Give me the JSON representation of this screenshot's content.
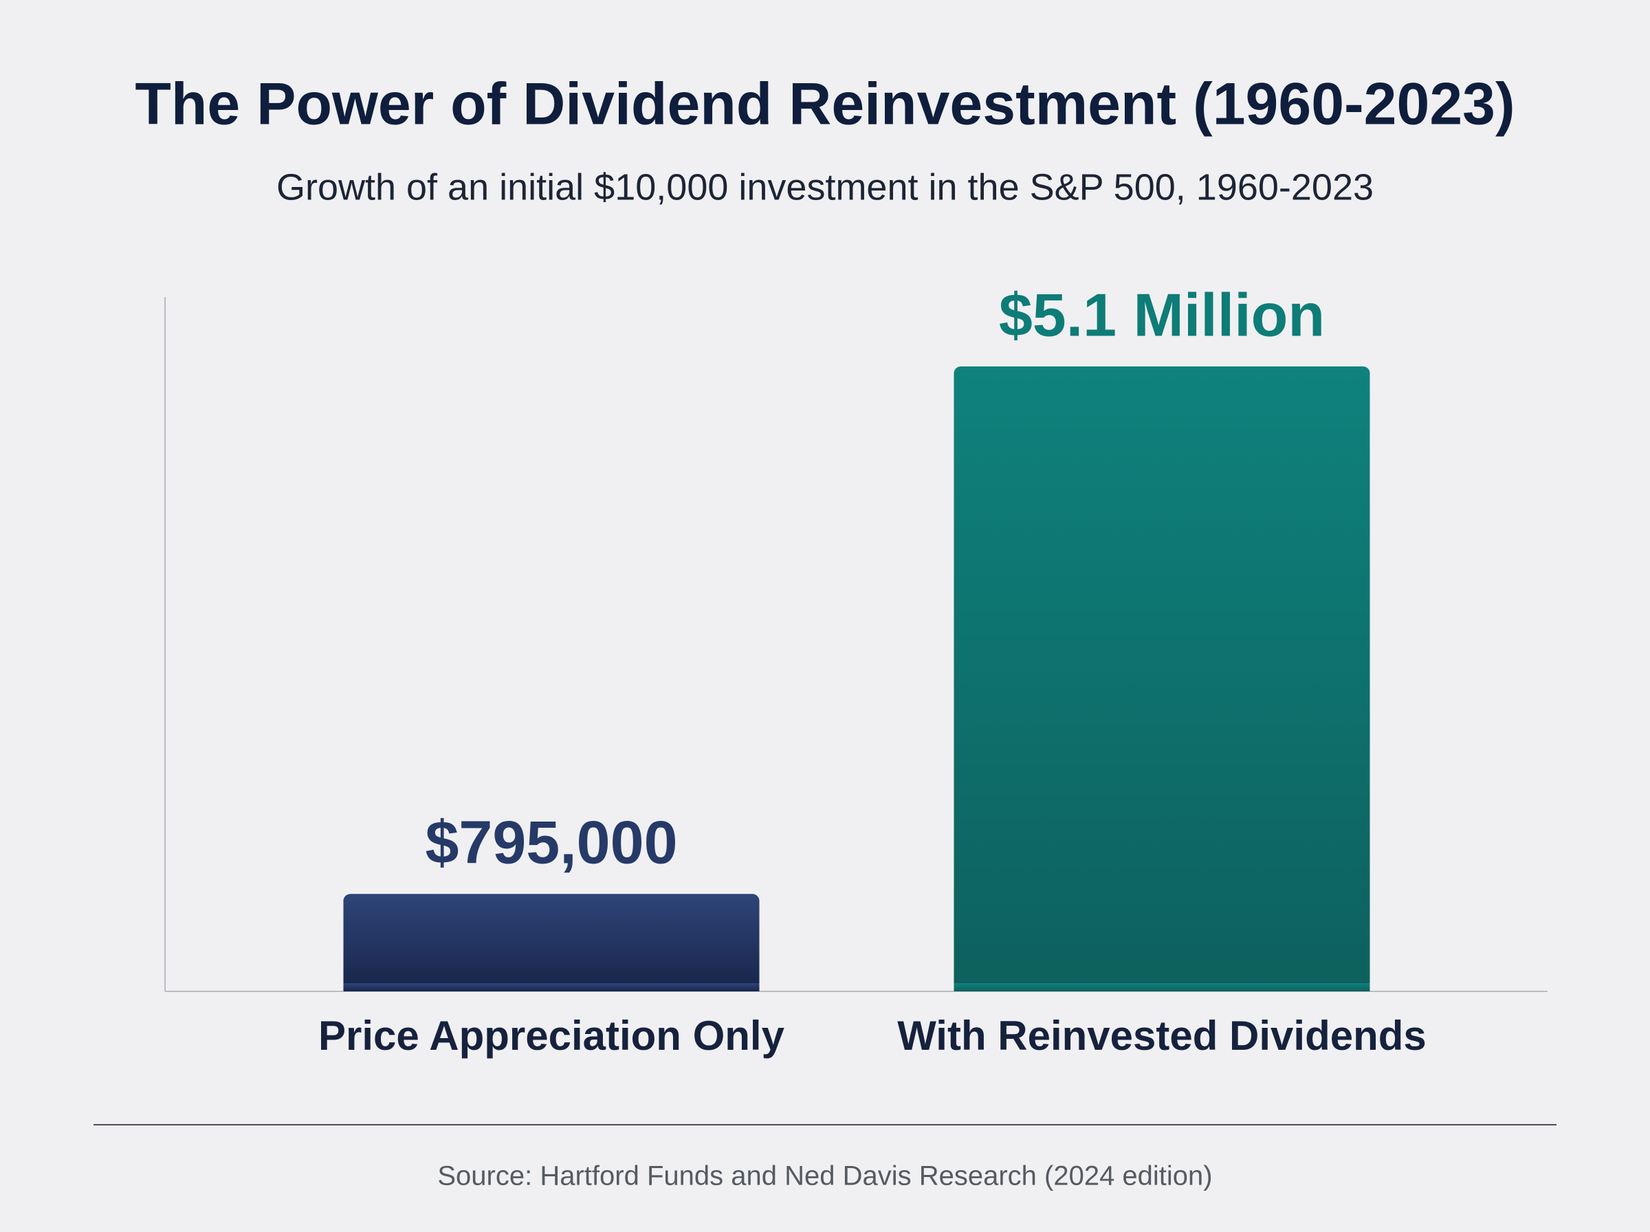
{
  "chart_data": {
    "type": "bar",
    "title": "The Power of Dividend Reinvestment (1960-2023)",
    "subtitle": "Growth of an initial $10,000 investment in the S&P 500, 1960-2023",
    "categories": [
      "Price Appreciation Only",
      "With Reinvested Dividends"
    ],
    "values": [
      795000,
      5100000
    ],
    "value_labels": [
      "$795,000",
      "$5.1 Million"
    ],
    "colors": [
      "#263a68",
      "#0e7c77"
    ],
    "source": "Source: Hartford Funds and Ned Davis Research (2024 edition)"
  }
}
